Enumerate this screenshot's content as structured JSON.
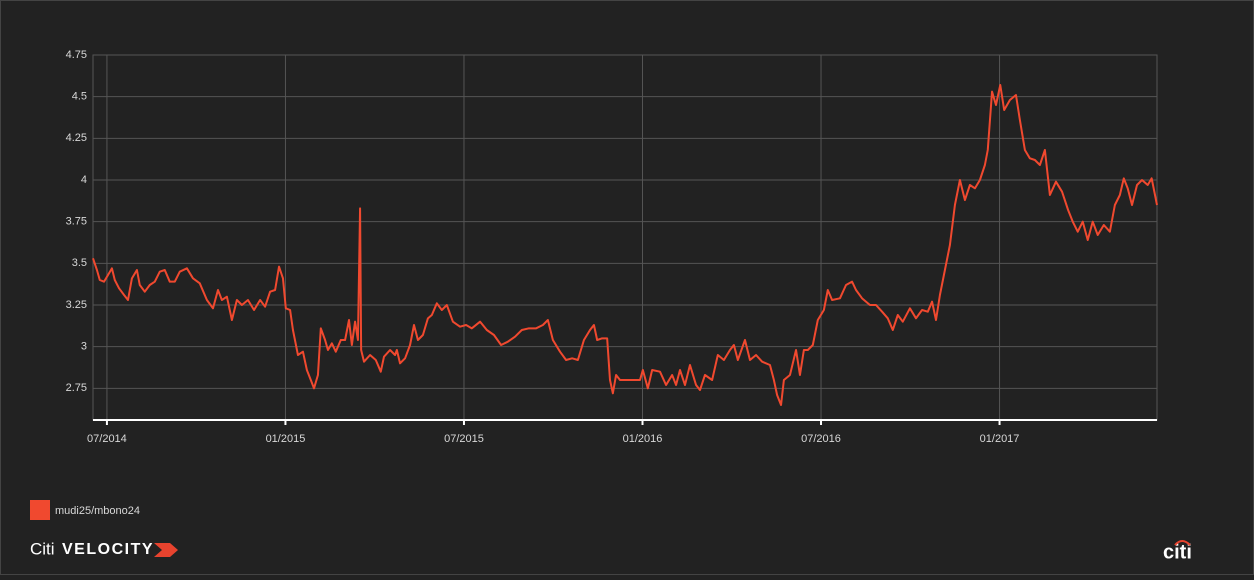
{
  "chart_data": {
    "type": "line",
    "x": [
      2014.461,
      2014.472,
      2014.48,
      2014.492,
      2014.503,
      2014.514,
      2014.522,
      2014.534,
      2014.548,
      2014.559,
      2014.57,
      2014.584,
      2014.592,
      2014.606,
      2014.62,
      2014.634,
      2014.648,
      2014.662,
      2014.676,
      2014.69,
      2014.704,
      2014.724,
      2014.741,
      2014.76,
      2014.78,
      2014.797,
      2014.811,
      2014.822,
      2014.836,
      2014.85,
      2014.864,
      2014.878,
      2014.895,
      2014.912,
      2014.929,
      2014.943,
      2014.957,
      2014.971,
      2014.982,
      2014.993,
      2015.001,
      2015.013,
      2015.021,
      2015.035,
      2015.049,
      2015.06,
      2015.071,
      2015.08,
      2015.091,
      2015.099,
      2015.111,
      2015.119,
      2015.13,
      2015.141,
      2015.155,
      2015.167,
      2015.178,
      2015.186,
      2015.195,
      2015.203,
      2015.209,
      2015.212,
      2015.22,
      2015.237,
      2015.253,
      2015.267,
      2015.276,
      2015.293,
      2015.307,
      2015.312,
      2015.321,
      2015.335,
      2015.349,
      2015.36,
      2015.371,
      2015.385,
      2015.399,
      2015.41,
      2015.424,
      2015.438,
      2015.452,
      2015.469,
      2015.489,
      2015.506,
      2015.522,
      2015.545,
      2015.564,
      2015.584,
      2015.604,
      2015.623,
      2015.643,
      2015.662,
      2015.682,
      2015.702,
      2015.721,
      2015.735,
      2015.749,
      2015.769,
      2015.786,
      2015.803,
      2015.819,
      2015.836,
      2015.853,
      2015.864,
      2015.873,
      2015.887,
      2015.901,
      2015.909,
      2015.917,
      2015.926,
      2015.937,
      2015.954,
      2015.979,
      2015.993,
      2016.001,
      2016.015,
      2016.027,
      2016.049,
      2016.066,
      2016.083,
      2016.094,
      2016.105,
      2016.119,
      2016.133,
      2016.15,
      2016.161,
      2016.175,
      2016.195,
      2016.211,
      2016.228,
      2016.245,
      2016.256,
      2016.267,
      2016.287,
      2016.301,
      2016.318,
      2016.335,
      2016.357,
      2016.368,
      2016.377,
      2016.388,
      2016.396,
      2016.413,
      2016.43,
      2016.441,
      2016.452,
      2016.463,
      2016.477,
      2016.491,
      2016.508,
      2016.519,
      2016.531,
      2016.553,
      2016.57,
      2016.587,
      2016.598,
      2016.615,
      2016.637,
      2016.654,
      2016.671,
      2016.687,
      2016.701,
      2016.715,
      2016.729,
      2016.749,
      2016.766,
      2016.783,
      2016.799,
      2016.811,
      2016.822,
      2016.833,
      2016.847,
      2016.861,
      2016.875,
      2016.889,
      2016.903,
      2016.917,
      2016.931,
      2016.945,
      2016.959,
      2016.967,
      2016.979,
      2016.99,
      2017.002,
      2017.013,
      2017.029,
      2017.046,
      2017.057,
      2017.071,
      2017.085,
      2017.099,
      2017.113,
      2017.127,
      2017.141,
      2017.158,
      2017.175,
      2017.192,
      2017.205,
      2017.219,
      2017.233,
      2017.247,
      2017.261,
      2017.275,
      2017.292,
      2017.309,
      2017.323,
      2017.337,
      2017.348,
      2017.359,
      2017.371,
      2017.385,
      2017.399,
      2017.415,
      2017.426,
      2017.441
    ],
    "series": [
      {
        "name": "mudi25/mbono24",
        "color": "#f0492f",
        "values": [
          3.53,
          3.46,
          3.4,
          3.39,
          3.43,
          3.47,
          3.4,
          3.35,
          3.31,
          3.28,
          3.41,
          3.46,
          3.37,
          3.33,
          3.37,
          3.39,
          3.45,
          3.46,
          3.39,
          3.39,
          3.45,
          3.47,
          3.41,
          3.38,
          3.28,
          3.23,
          3.34,
          3.28,
          3.3,
          3.16,
          3.28,
          3.25,
          3.28,
          3.22,
          3.28,
          3.24,
          3.33,
          3.34,
          3.48,
          3.41,
          3.23,
          3.22,
          3.1,
          2.95,
          2.97,
          2.86,
          2.8,
          2.75,
          2.83,
          3.11,
          3.04,
          2.98,
          3.02,
          2.97,
          3.04,
          3.04,
          3.16,
          3.01,
          3.15,
          3.04,
          3.83,
          2.98,
          2.91,
          2.95,
          2.92,
          2.85,
          2.94,
          2.98,
          2.95,
          2.98,
          2.9,
          2.93,
          3.01,
          3.13,
          3.04,
          3.07,
          3.17,
          3.19,
          3.26,
          3.22,
          3.25,
          3.15,
          3.12,
          3.13,
          3.11,
          3.15,
          3.1,
          3.07,
          3.01,
          3.03,
          3.06,
          3.1,
          3.11,
          3.11,
          3.13,
          3.16,
          3.04,
          2.97,
          2.92,
          2.93,
          2.92,
          3.04,
          3.1,
          3.13,
          3.04,
          3.05,
          3.05,
          2.8,
          2.72,
          2.83,
          2.8,
          2.8,
          2.8,
          2.8,
          2.86,
          2.75,
          2.86,
          2.85,
          2.77,
          2.83,
          2.77,
          2.86,
          2.77,
          2.89,
          2.77,
          2.74,
          2.83,
          2.8,
          2.95,
          2.92,
          2.98,
          3.01,
          2.92,
          3.04,
          2.92,
          2.95,
          2.91,
          2.89,
          2.8,
          2.71,
          2.65,
          2.8,
          2.83,
          2.98,
          2.83,
          2.98,
          2.98,
          3.01,
          3.16,
          3.22,
          3.34,
          3.28,
          3.29,
          3.37,
          3.39,
          3.34,
          3.29,
          3.25,
          3.25,
          3.21,
          3.17,
          3.1,
          3.19,
          3.15,
          3.23,
          3.17,
          3.22,
          3.21,
          3.27,
          3.16,
          3.31,
          3.46,
          3.61,
          3.85,
          4.0,
          3.88,
          3.97,
          3.95,
          4.0,
          4.09,
          4.18,
          4.53,
          4.45,
          4.57,
          4.42,
          4.48,
          4.51,
          4.36,
          4.18,
          4.13,
          4.12,
          4.09,
          4.18,
          3.91,
          3.99,
          3.93,
          3.82,
          3.75,
          3.69,
          3.75,
          3.64,
          3.75,
          3.67,
          3.73,
          3.69,
          3.85,
          3.91,
          4.01,
          3.95,
          3.85,
          3.97,
          4.0,
          3.97,
          4.01,
          3.85
        ]
      }
    ],
    "xlim": [
      2014.461,
      2017.441
    ],
    "xticks": [
      {
        "value": 2014.5,
        "label": "07/2014"
      },
      {
        "value": 2015,
        "label": "01/2015"
      },
      {
        "value": 2015.5,
        "label": "07/2015"
      },
      {
        "value": 2016,
        "label": "01/2016"
      },
      {
        "value": 2016.5,
        "label": "07/2016"
      },
      {
        "value": 2017,
        "label": "01/2017"
      }
    ],
    "ylim": [
      2.56,
      4.75
    ],
    "yticks": [
      2.75,
      3,
      3.25,
      3.5,
      3.75,
      4,
      4.25,
      4.5,
      4.75
    ],
    "grid": true,
    "legend": "bottom-left"
  },
  "branding": {
    "product_prefix": "Citi",
    "product_name": "VELOCITY",
    "logo": "citi"
  }
}
